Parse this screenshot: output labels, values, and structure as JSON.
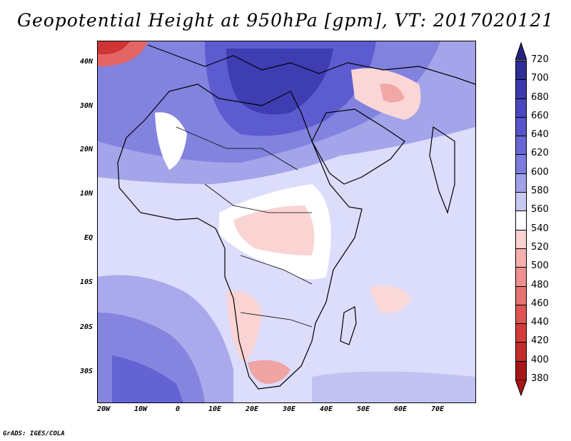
{
  "title": "Geopotential Height at 950hPa [gpm], VT: 2017020121",
  "footer": "GrADS: IGES/COLA",
  "axes": {
    "lat_labels": [
      "40N",
      "30N",
      "20N",
      "10N",
      "EQ",
      "10S",
      "20S",
      "30S"
    ],
    "lon_labels": [
      "20W",
      "10W",
      "0",
      "10E",
      "20E",
      "30E",
      "40E",
      "50E",
      "60E",
      "70E"
    ]
  },
  "colorbar": {
    "levels": [
      "720",
      "700",
      "680",
      "660",
      "640",
      "620",
      "600",
      "580",
      "560",
      "540",
      "520",
      "500",
      "480",
      "460",
      "440",
      "420",
      "400",
      "380"
    ],
    "colors": [
      "#25237f",
      "#2f2d98",
      "#3b3aae",
      "#4948c0",
      "#5755cc",
      "#6866d6",
      "#7d7ddf",
      "#a1a1ea",
      "#c8c9f3",
      "#ffffff",
      "#fbd2d2",
      "#f6b0b0",
      "#ef9090",
      "#e77272",
      "#df5353",
      "#d43c3c",
      "#c32a2a",
      "#a51717"
    ]
  }
}
